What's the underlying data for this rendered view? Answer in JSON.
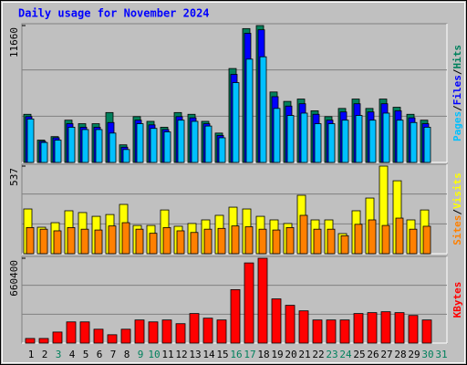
{
  "chart_data": {
    "type": "bar",
    "title": "Daily usage for November 2024",
    "categories": [
      "1",
      "2",
      "3",
      "4",
      "5",
      "6",
      "7",
      "8",
      "9",
      "10",
      "11",
      "12",
      "13",
      "14",
      "15",
      "16",
      "17",
      "18",
      "19",
      "20",
      "21",
      "22",
      "23",
      "24",
      "25",
      "26",
      "27",
      "28",
      "29",
      "30",
      "31"
    ],
    "category_colors": [
      "#000000",
      "#000000",
      "#00805c",
      "#000000",
      "#000000",
      "#000000",
      "#000000",
      "#000000",
      "#00805c",
      "#00805c",
      "#000000",
      "#000000",
      "#000000",
      "#000000",
      "#000000",
      "#00805c",
      "#00805c",
      "#000000",
      "#000000",
      "#000000",
      "#000000",
      "#000000",
      "#00805c",
      "#00805c",
      "#000000",
      "#000000",
      "#000000",
      "#000000",
      "#000000",
      "#00805c",
      "#00805c"
    ],
    "legend_separator": "/",
    "panels": [
      {
        "ylim": [
          0,
          11660
        ],
        "yticks": [
          11660
        ],
        "series": [
          {
            "name": "Hits",
            "color": "#00805c",
            "values": [
              4100,
              1900,
              2200,
              3600,
              3300,
              3300,
              4250,
              1500,
              3900,
              3500,
              3000,
              4250,
              4100,
              3500,
              2500,
              8000,
              11400,
              11660,
              6000,
              5200,
              5400,
              4400,
              3900,
              4600,
              5400,
              4600,
              5400,
              4700,
              4100,
              3600,
              null
            ]
          },
          {
            "name": "Files",
            "color": "#0000ff",
            "values": [
              3900,
              1800,
              2100,
              3300,
              3000,
              3000,
              3400,
              1300,
              3600,
              3200,
              2800,
              3900,
              3800,
              3300,
              2300,
              7500,
              11000,
              11300,
              5600,
              4800,
              5000,
              4100,
              3600,
              4300,
              5000,
              4300,
              5000,
              4400,
              3800,
              3300,
              null
            ]
          },
          {
            "name": "Pages",
            "color": "#00c0ff",
            "values": [
              3700,
              1700,
              1900,
              3000,
              2800,
              2800,
              2500,
              1100,
              3300,
              2900,
              2600,
              3600,
              3500,
              3100,
              2100,
              6800,
              8800,
              9000,
              4600,
              4000,
              4200,
              3300,
              3300,
              3600,
              4000,
              3600,
              4200,
              3600,
              3400,
              3000,
              null
            ]
          }
        ]
      },
      {
        "ylim": [
          0,
          537
        ],
        "yticks": [
          537
        ],
        "series": [
          {
            "name": "Visits",
            "color": "#ffff00",
            "values": [
              274,
              162,
              190,
              263,
              252,
              229,
              240,
              302,
              173,
              173,
              268,
              168,
              185,
              207,
              235,
              285,
              274,
              229,
              207,
              185,
              358,
              207,
              207,
              123,
              263,
              341,
              537,
              447,
              207,
              268,
              null
            ]
          },
          {
            "name": "Sites",
            "color": "#ff8000",
            "values": [
              160,
              150,
              140,
              160,
              150,
              145,
              170,
              190,
              150,
              125,
              160,
              140,
              130,
              150,
              155,
              170,
              165,
              150,
              145,
              160,
              235,
              150,
              150,
              110,
              180,
              207,
              173,
              218,
              150,
              168,
              null
            ]
          }
        ]
      },
      {
        "ylim": [
          0,
          660400
        ],
        "yticks": [
          660400
        ],
        "series": [
          {
            "name": "KBytes",
            "color": "#ff0000",
            "values": [
              36000,
              36000,
              86000,
              165000,
              165000,
              108000,
              65000,
              108000,
              180000,
              165000,
              180000,
              151000,
              230000,
              194000,
              180000,
              416000,
              624000,
              660400,
              344000,
              294000,
              251000,
              180000,
              180000,
              180000,
              230000,
              237000,
              244000,
              237000,
              215000,
              180000,
              null
            ]
          }
        ]
      }
    ]
  }
}
